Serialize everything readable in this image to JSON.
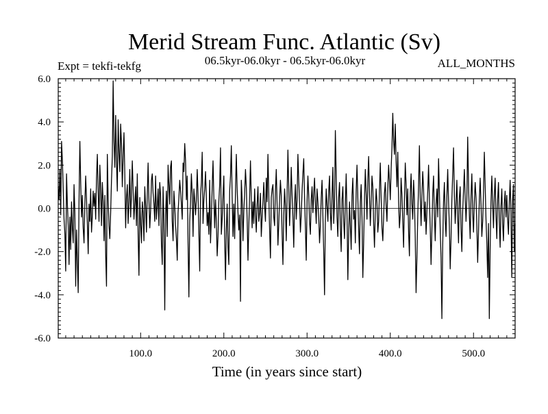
{
  "chart_data": {
    "type": "line",
    "title": "Merid Stream Func. Atlantic (Sv)",
    "experiment_label": "Expt = tekfi-tekfg",
    "period_label": "06.5kyr-06.0kyr - 06.5kyr-06.0kyr",
    "months_label": "ALL_MONTHS",
    "xlabel": "Time (in years since start)",
    "ylabel": "",
    "xlim": [
      1,
      550
    ],
    "ylim": [
      -6.0,
      6.0
    ],
    "xticks": [
      100.0,
      200.0,
      300.0,
      400.0,
      500.0
    ],
    "xtick_labels": [
      "100.0",
      "200.0",
      "300.0",
      "400.0",
      "500.0"
    ],
    "yticks": [
      -6.0,
      -4.0,
      -2.0,
      0.0,
      2.0,
      4.0,
      6.0
    ],
    "ytick_labels": [
      "-6.0",
      "-4.0",
      "-2.0",
      "0.0",
      "2.0",
      "4.0",
      "6.0"
    ],
    "zero_line": 0.0,
    "series": [
      {
        "name": "Merid Stream Func. Atlantic",
        "x_start": 1,
        "x_step": 1,
        "values": [
          1.0,
          0.4,
          1.8,
          -0.3,
          3.1,
          2.2,
          0.9,
          -0.5,
          -1.2,
          -2.9,
          1.6,
          0.2,
          -0.8,
          -2.6,
          -0.4,
          -1.9,
          0.3,
          -0.9,
          -1.6,
          1.1,
          -0.2,
          -3.6,
          -1.0,
          -2.4,
          -3.9,
          0.3,
          3.1,
          1.2,
          -0.4,
          0.6,
          -0.9,
          -1.6,
          0.2,
          1.5,
          0.4,
          -0.7,
          -2.1,
          0.2,
          -0.6,
          0.9,
          -1.1,
          -0.3,
          0.8,
          0.1,
          0.7,
          -0.5,
          1.4,
          2.5,
          0.8,
          -0.6,
          2.0,
          0.9,
          -0.8,
          1.2,
          0.3,
          -1.5,
          0.6,
          -2.1,
          -3.6,
          2.5,
          0.4,
          -0.8,
          -1.4,
          -0.2,
          1.3,
          2.4,
          5.9,
          3.1,
          1.9,
          4.3,
          2.2,
          0.8,
          4.1,
          2.6,
          1.7,
          3.9,
          3.0,
          1.0,
          2.4,
          3.5,
          1.6,
          -0.9,
          0.5,
          1.1,
          -0.7,
          0.3,
          1.8,
          -0.4,
          0.6,
          2.2,
          0.9,
          -0.5,
          0.2,
          1.0,
          -0.8,
          1.6,
          -1.2,
          -3.1,
          0.5,
          -0.7,
          -1.6,
          0.3,
          -0.2,
          -1.5,
          1.0,
          0.1,
          -1.1,
          0.6,
          2.1,
          0.4,
          -0.9,
          -0.1,
          1.3,
          1.6,
          0.7,
          0.2,
          -0.6,
          1.5,
          -0.5,
          0.1,
          0.9,
          -0.8,
          1.2,
          0.6,
          -1.6,
          -2.6,
          1.0,
          -0.7,
          -4.7,
          -0.3,
          0.8,
          -1.3,
          2.0,
          1.1,
          0.2,
          1.9,
          2.2,
          -0.6,
          -1.5,
          0.8,
          0.1,
          -0.8,
          -1.4,
          -2.4,
          -0.2,
          0.5,
          1.3,
          0.8,
          0.2,
          -0.5,
          2.1,
          1.7,
          3.0,
          2.2,
          0.4,
          1.5,
          -1.6,
          -4.1,
          -0.6,
          0.3,
          1.6,
          0.7,
          -1.3,
          0.9,
          0.4,
          -0.3,
          0.4,
          1.8,
          0.6,
          -1.1,
          -2.9,
          0.6,
          1.2,
          2.6,
          -0.7,
          0.4,
          0.9,
          1.7,
          0.5,
          -0.8,
          -0.2,
          -1.2,
          1.3,
          -1.6,
          -0.4,
          1.0,
          2.2,
          0.5,
          -0.9,
          0.4,
          -0.6,
          -2.2,
          -1.3,
          0.3,
          1.1,
          2.8,
          -1.2,
          -0.5,
          0.6,
          1.5,
          -1.4,
          -3.3,
          -1.0,
          0.2,
          -1.8,
          -2.6,
          0.8,
          1.5,
          2.9,
          0.5,
          -1.3,
          0.2,
          -1.4,
          0.8,
          2.5,
          0.9,
          -0.2,
          -1.0,
          -0.3,
          -4.3,
          1.3,
          0.4,
          -1.5,
          -0.1,
          0.7,
          1.8,
          1.0,
          -0.5,
          -2.4,
          -0.8,
          0.6,
          2.2,
          0.4,
          -0.9,
          0.3,
          -0.7,
          0.9,
          -0.3,
          -1.1,
          0.2,
          1.0,
          -0.6,
          -0.2,
          0.7,
          -1.3,
          -0.4,
          0.3,
          1.2,
          0.1,
          -0.6,
          1.4,
          0.3,
          2.5,
          0.7,
          -1.0,
          -2.3,
          0.5,
          0.9,
          1.1,
          -0.4,
          -0.8,
          0.8,
          1.8,
          0.2,
          -1.7,
          -0.7,
          0.4,
          1.3,
          0.6,
          -1.2,
          -2.6,
          -0.3,
          0.9,
          0.1,
          -1.5,
          0.6,
          2.7,
          1.0,
          -0.8,
          0.3,
          1.9,
          0.6,
          -0.4,
          -1.8,
          0.2,
          1.1,
          -0.5,
          0.4,
          2.5,
          1.3,
          0.2,
          -1.1,
          -0.3,
          0.8,
          1.6,
          2.3,
          0.5,
          -0.9,
          -2.4,
          0.3,
          1.5,
          0.6,
          -0.6,
          -1.2,
          0.4,
          1.0,
          -0.2,
          0.7,
          1.4,
          0.2,
          -0.7,
          0.9,
          0.3,
          -0.4,
          -1.6,
          -0.8,
          0.5,
          1.3,
          -0.3,
          -2.0,
          -4.0,
          -0.5,
          0.9,
          0.1,
          -0.6,
          0.8,
          1.5,
          -0.2,
          -1.0,
          0.6,
          1.9,
          -0.7,
          0.3,
          3.6,
          1.5,
          -0.4,
          -1.3,
          0.5,
          1.2,
          -0.9,
          -2.0,
          0.4,
          1.0,
          -0.6,
          -1.4,
          0.2,
          1.6,
          -0.3,
          -3.3,
          -1.2,
          0.3,
          -0.8,
          -1.9,
          0.6,
          1.4,
          -0.5,
          -0.1,
          -1.6,
          0.8,
          2.0,
          0.5,
          -1.0,
          -2.1,
          0.3,
          1.1,
          -0.4,
          -3.2,
          -1.6,
          0.4,
          1.8,
          0.7,
          -0.5,
          1.3,
          2.4,
          0.6,
          -0.8,
          0.2,
          1.5,
          1.0,
          -0.7,
          -1.8,
          -0.2,
          0.9,
          0.3,
          -1.1,
          -0.6,
          0.8,
          2.1,
          0.5,
          -0.9,
          -1.5,
          -0.4,
          0.7,
          1.2,
          0.1,
          -0.6,
          0.9,
          2.0,
          1.3,
          0.4,
          1.8,
          2.8,
          4.4,
          3.1,
          2.5,
          3.9,
          2.2,
          1.0,
          2.6,
          0.3,
          -0.9,
          -0.3,
          1.4,
          0.6,
          -0.6,
          -1.8,
          0.4,
          2.1,
          1.1,
          -0.3,
          0.9,
          -1.1,
          -2.2,
          0.7,
          1.6,
          0.2,
          -0.5,
          1.3,
          0.4,
          -1.4,
          -3.9,
          -2.3,
          -0.4,
          1.1,
          2.9,
          0.5,
          -0.8,
          0.6,
          1.7,
          0.9,
          -0.6,
          0.3,
          -1.2,
          -0.2,
          0.8,
          2.0,
          0.4,
          -0.9,
          -2.6,
          -1.0,
          0.7,
          1.5,
          -0.3,
          -1.5,
          0.2,
          0.9,
          -0.4,
          2.3,
          0.8,
          -1.0,
          -2.3,
          -5.1,
          -1.7,
          0.3,
          1.2,
          -0.5,
          -1.3,
          0.6,
          1.8,
          0.3,
          -0.8,
          -2.8,
          -1.4,
          0.4,
          1.6,
          2.8,
          0.6,
          -0.7,
          0.2,
          1.3,
          -0.4,
          -1.6,
          0.5,
          1.0,
          -0.9,
          -2.0,
          -0.1,
          0.8,
          1.8,
          0.5,
          -0.6,
          0.4,
          3.3,
          1.2,
          -0.3,
          -1.4,
          0.6,
          1.6,
          -0.2,
          -1.1,
          0.3,
          1.2,
          0.5,
          -0.8,
          -2.5,
          -1.1,
          0.4,
          1.4,
          0.2,
          -1.3,
          -0.6,
          0.7,
          2.6,
          1.1,
          -0.5,
          -1.6,
          -3.2,
          -0.7,
          -5.1,
          -1.9,
          0.3,
          1.5,
          0.2,
          -0.9,
          0.6,
          1.4,
          -0.3,
          -1.4,
          0.4,
          1.2,
          -0.6,
          -1.8,
          0.1,
          0.9,
          -0.7,
          -1.5,
          0.2,
          0.8,
          -0.4,
          0.6,
          -0.5,
          -1.2,
          0.3,
          1.3,
          -0.2,
          -3.2,
          0.4,
          1.1,
          -2.0,
          -0.7
        ]
      }
    ]
  }
}
